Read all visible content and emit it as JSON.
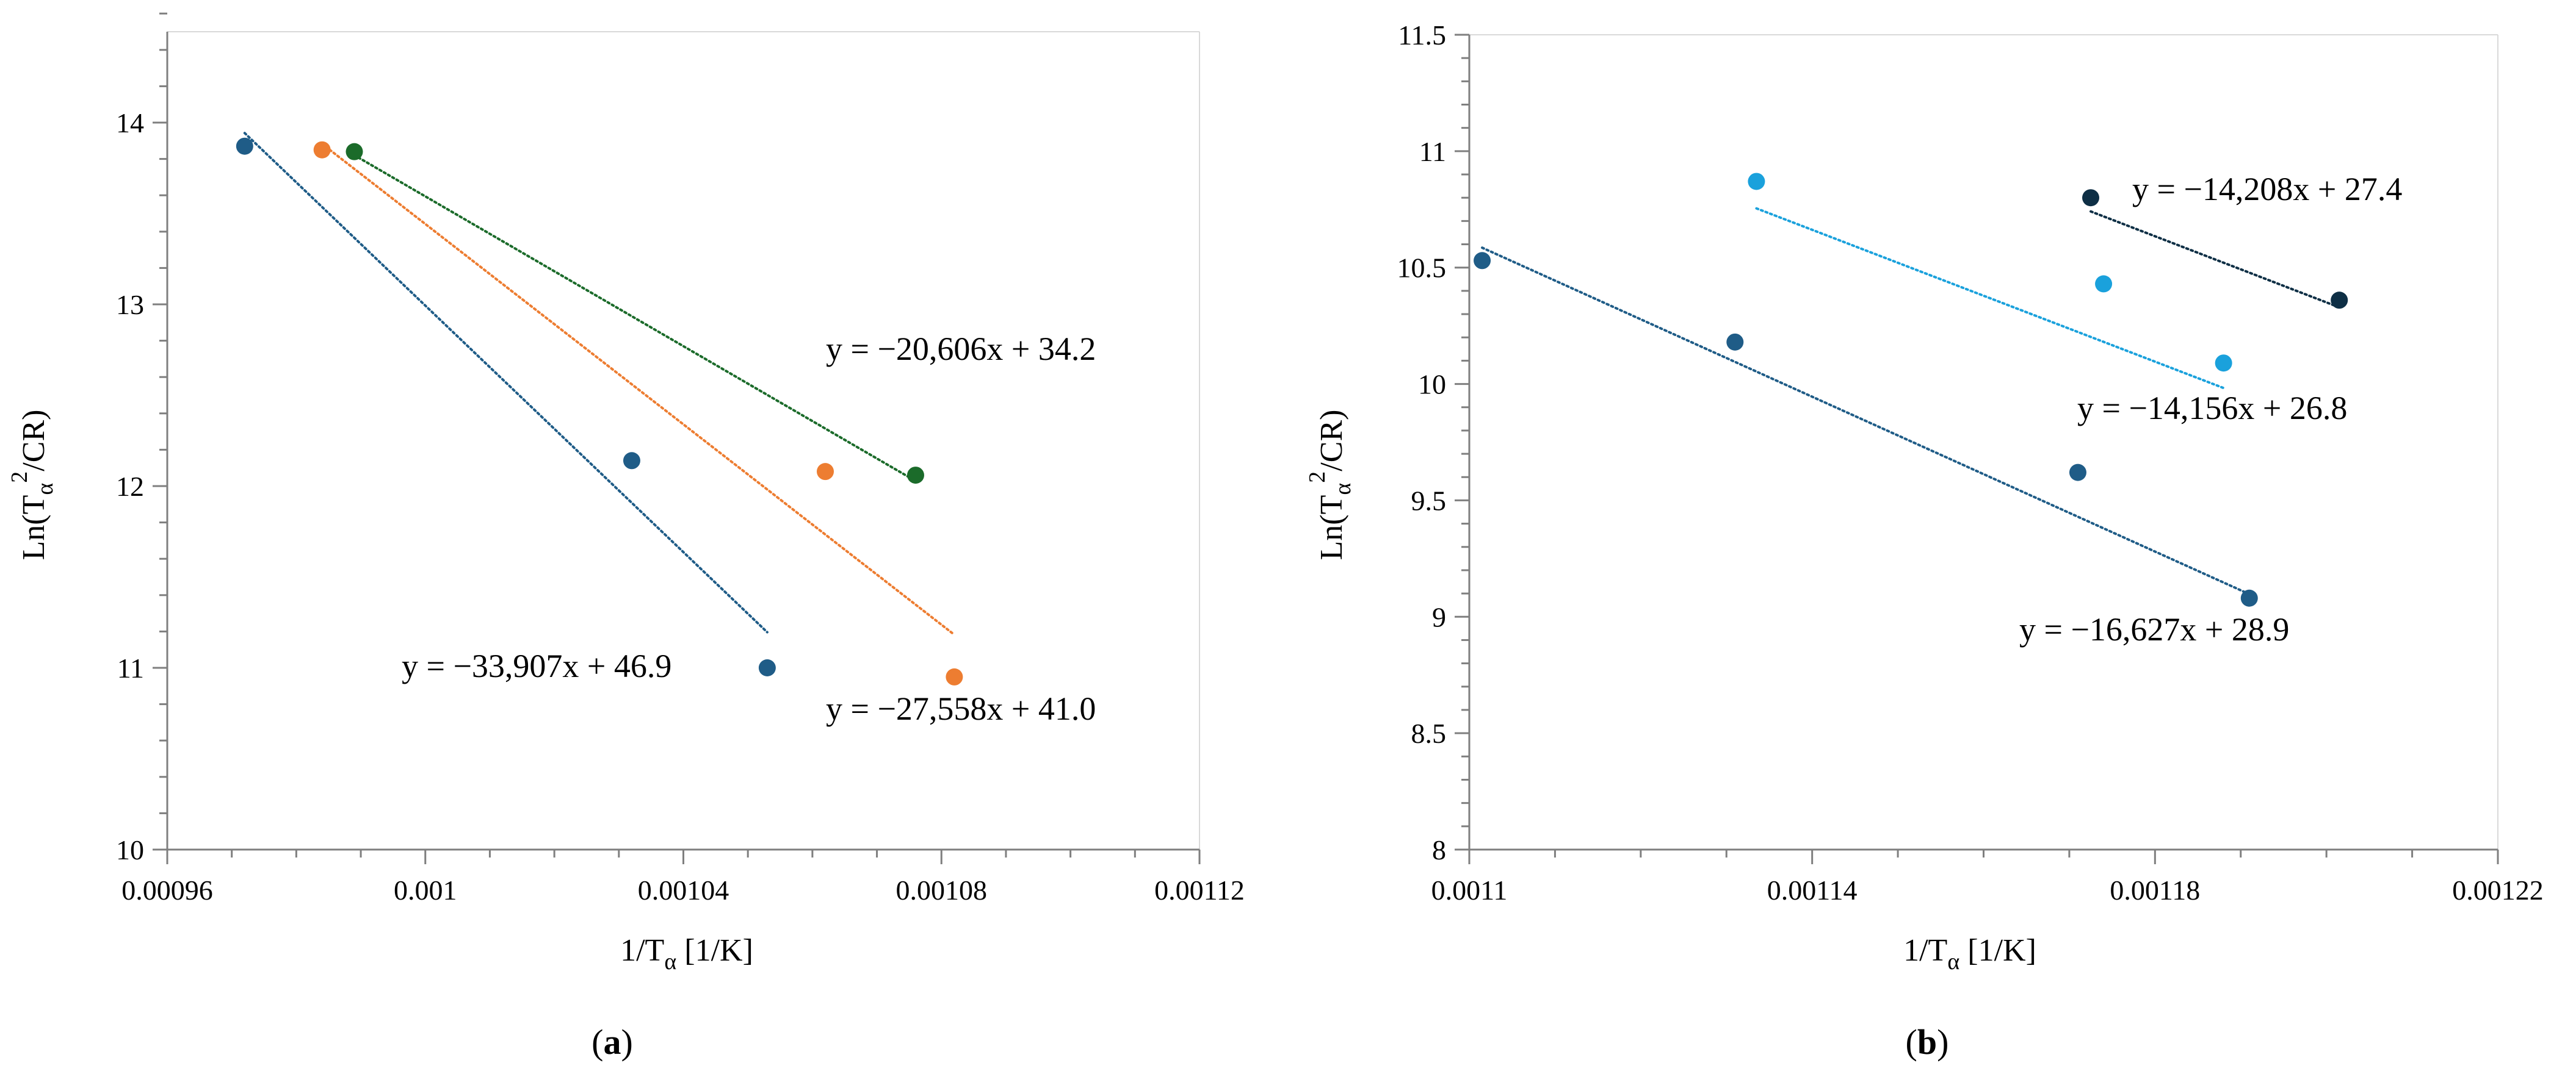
{
  "figure": {
    "colors": {
      "axis": "#7f7f7f",
      "text": "#000000",
      "background": "#ffffff"
    }
  },
  "chart_data": [
    {
      "id": "a",
      "type": "scatter",
      "panel_label": "a",
      "xlabel": {
        "main": "1/T",
        "sub": "α",
        "after": " [1/K]"
      },
      "ylabel": {
        "main": "Ln(T",
        "sub": "α",
        "sup": "2",
        "after": "/CR)"
      },
      "xlim": [
        0.00096,
        0.00112
      ],
      "ylim": [
        10,
        14.5
      ],
      "x_ticks": [
        0.00096,
        0.001,
        0.00104,
        0.00108,
        0.00112
      ],
      "x_tick_labels": [
        "0.00096",
        "0.001",
        "0.00104",
        "0.00108",
        "0.00112"
      ],
      "x_minor_step": 1e-05,
      "y_ticks": [
        10,
        11,
        12,
        13,
        14
      ],
      "y_tick_labels": [
        "10",
        "11",
        "12",
        "13",
        "14"
      ],
      "y_minor_step": 0.2,
      "grid": false,
      "legend": "none",
      "series": [
        {
          "name": "series-1",
          "color": "#1f5c87",
          "points": [
            [
              0.000972,
              13.87
            ],
            [
              0.001032,
              12.14
            ],
            [
              0.001053,
              11.0
            ]
          ],
          "trendline": {
            "slope": -33907,
            "intercept": 46.9,
            "x_range": [
              0.000972,
              0.001053
            ]
          },
          "equation": "y = −33,907x + 46.9"
        },
        {
          "name": "series-2",
          "color": "#ed7d31",
          "points": [
            [
              0.000984,
              13.85
            ],
            [
              0.001062,
              12.08
            ],
            [
              0.001082,
              10.95
            ]
          ],
          "trendline": {
            "slope": -27558,
            "intercept": 41.0,
            "x_range": [
              0.000984,
              0.001082
            ]
          },
          "equation": "y = −27,558x + 41.0"
        },
        {
          "name": "series-3",
          "color": "#1b6b2a",
          "points": [
            [
              0.000989,
              13.84
            ],
            [
              0.001076,
              12.06
            ]
          ],
          "trendline": {
            "slope": -20606,
            "intercept": 34.2,
            "x_range": [
              0.000989,
              0.001076
            ]
          },
          "equation": "y = −20,606x + 34.2"
        }
      ]
    },
    {
      "id": "b",
      "type": "scatter",
      "panel_label": "b",
      "xlabel": {
        "main": "1/T",
        "sub": "α",
        "after": " [1/K]"
      },
      "ylabel": {
        "main": "Ln(T",
        "sub": "α",
        "sup": "2",
        "after": "/CR)"
      },
      "xlim": [
        0.0011,
        0.00122
      ],
      "ylim": [
        8,
        11.5
      ],
      "x_ticks": [
        0.0011,
        0.00114,
        0.00118,
        0.00122
      ],
      "x_tick_labels": [
        "0.0011",
        "0.00114",
        "0.00118",
        "0.00122"
      ],
      "x_minor_step": 1e-05,
      "y_ticks": [
        8,
        8.5,
        9,
        9.5,
        10,
        10.5,
        11,
        11.5
      ],
      "y_tick_labels": [
        "8",
        "8.5",
        "9",
        "9.5",
        "10",
        "10.5",
        "11",
        "11.5"
      ],
      "y_minor_step": 0.1,
      "grid": false,
      "legend": "none",
      "series": [
        {
          "name": "series-1",
          "color": "#1f5c87",
          "points": [
            [
              0.0011015,
              10.53
            ],
            [
              0.001131,
              10.18
            ],
            [
              0.001171,
              9.62
            ],
            [
              0.001191,
              9.08
            ]
          ],
          "trendline": {
            "slope": -16627,
            "intercept": 28.9,
            "x_range": [
              0.0011015,
              0.001191
            ]
          },
          "equation": "y = −16,627x + 28.9"
        },
        {
          "name": "series-2",
          "color": "#1aa1dc",
          "points": [
            [
              0.0011335,
              10.87
            ],
            [
              0.001174,
              10.43
            ],
            [
              0.001188,
              10.09
            ]
          ],
          "trendline": {
            "slope": -14156,
            "intercept": 26.8,
            "x_range": [
              0.0011335,
              0.001188
            ]
          },
          "equation": "y = −14,156x + 26.8"
        },
        {
          "name": "series-3",
          "color": "#0e2f45",
          "points": [
            [
              0.0011725,
              10.8
            ],
            [
              0.0012015,
              10.36
            ]
          ],
          "trendline": {
            "slope": -14208,
            "intercept": 27.4,
            "x_range": [
              0.0011725,
              0.0012015
            ]
          },
          "equation": "y = −14,208x + 27.4"
        }
      ]
    }
  ]
}
